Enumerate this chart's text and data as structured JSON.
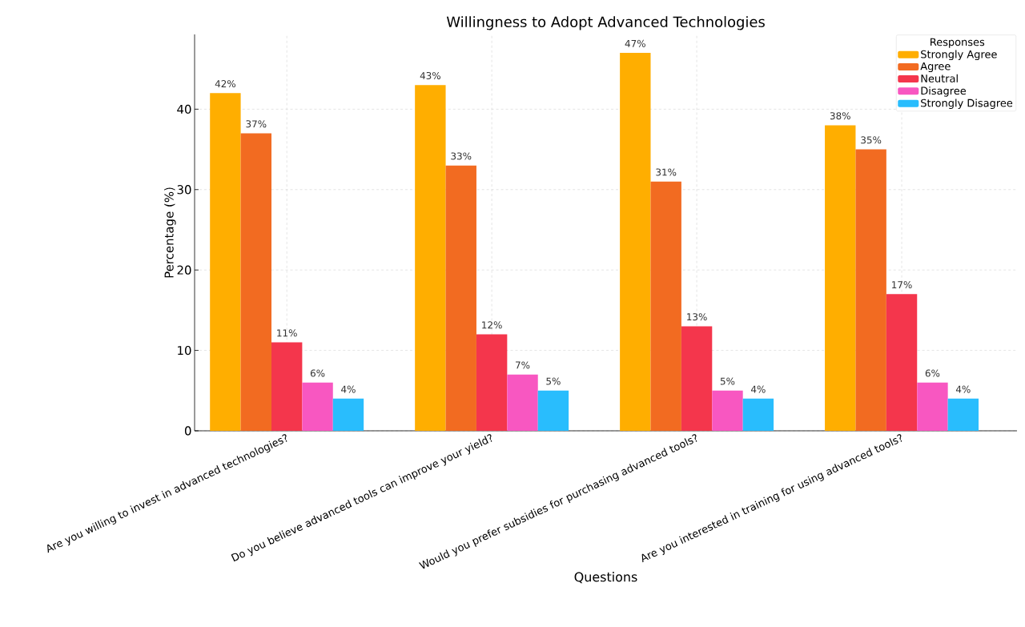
{
  "chart_data": {
    "type": "bar",
    "title": "Willingness to Adopt Advanced Technologies",
    "xlabel": "Questions",
    "ylabel": "Percentage (%)",
    "legend_title": "Responses",
    "categories": [
      "Are you willing to invest in advanced technologies?",
      "Do you believe advanced tools can improve your yield?",
      "Would you prefer subsidies for purchasing advanced tools?",
      "Are you interested in training for using advanced tools?"
    ],
    "series": [
      {
        "name": "Strongly Agree",
        "color": "#ffae00",
        "values": [
          42,
          43,
          47,
          38
        ],
        "value_labels": [
          "42%",
          "43%",
          "47%",
          "38%"
        ]
      },
      {
        "name": "Agree",
        "color": "#f26b21",
        "values": [
          37,
          33,
          31,
          35
        ],
        "value_labels": [
          "37%",
          "33%",
          "31%",
          "35%"
        ]
      },
      {
        "name": "Neutral",
        "color": "#f4364c",
        "values": [
          11,
          12,
          13,
          17
        ],
        "value_labels": [
          "11%",
          "12%",
          "13%",
          "17%"
        ]
      },
      {
        "name": "Disagree",
        "color": "#f857c1",
        "values": [
          6,
          7,
          5,
          6
        ],
        "value_labels": [
          "6%",
          "7%",
          "5%",
          "6%"
        ]
      },
      {
        "name": "Strongly Disagree",
        "color": "#29bdfd",
        "values": [
          4,
          5,
          4,
          4
        ],
        "value_labels": [
          "4%",
          "5%",
          "4%",
          "4%"
        ]
      }
    ],
    "ylim": [
      0,
      49.3
    ],
    "yticks": [
      0,
      10,
      20,
      30,
      40
    ],
    "grid": true,
    "legend": "top right"
  }
}
